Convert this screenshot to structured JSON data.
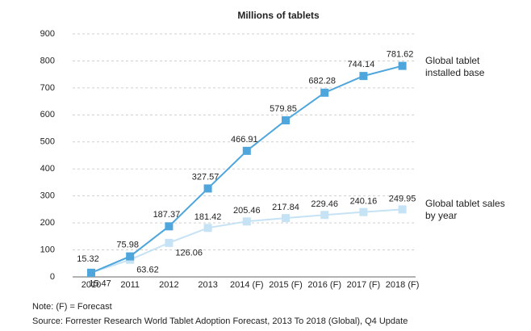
{
  "chart_data": {
    "type": "line",
    "title": "Millions of tablets",
    "categories": [
      "2010",
      "2011",
      "2012",
      "2013",
      "2014 (F)",
      "2015 (F)",
      "2016 (F)",
      "2017 (F)",
      "2018 (F)"
    ],
    "series": [
      {
        "name": "Global tablet installed base",
        "color": "#4ea6dc",
        "values": [
          15.32,
          75.98,
          187.37,
          327.57,
          466.91,
          579.85,
          682.28,
          744.14,
          781.62
        ]
      },
      {
        "name": "Global tablet sales by year",
        "color": "#c6e2f5",
        "values": [
          15.47,
          63.62,
          126.06,
          181.42,
          205.46,
          217.84,
          229.46,
          240.16,
          249.95
        ]
      }
    ],
    "ylim": [
      0,
      900
    ],
    "yticks": [
      0,
      100,
      200,
      300,
      400,
      500,
      600,
      700,
      800,
      900
    ],
    "grid": true,
    "note": "Note: (F) = Forecast",
    "source": "Source: Forrester Research World Tablet Adoption Forecast, 2013 To 2018 (Global), Q4 Update"
  }
}
